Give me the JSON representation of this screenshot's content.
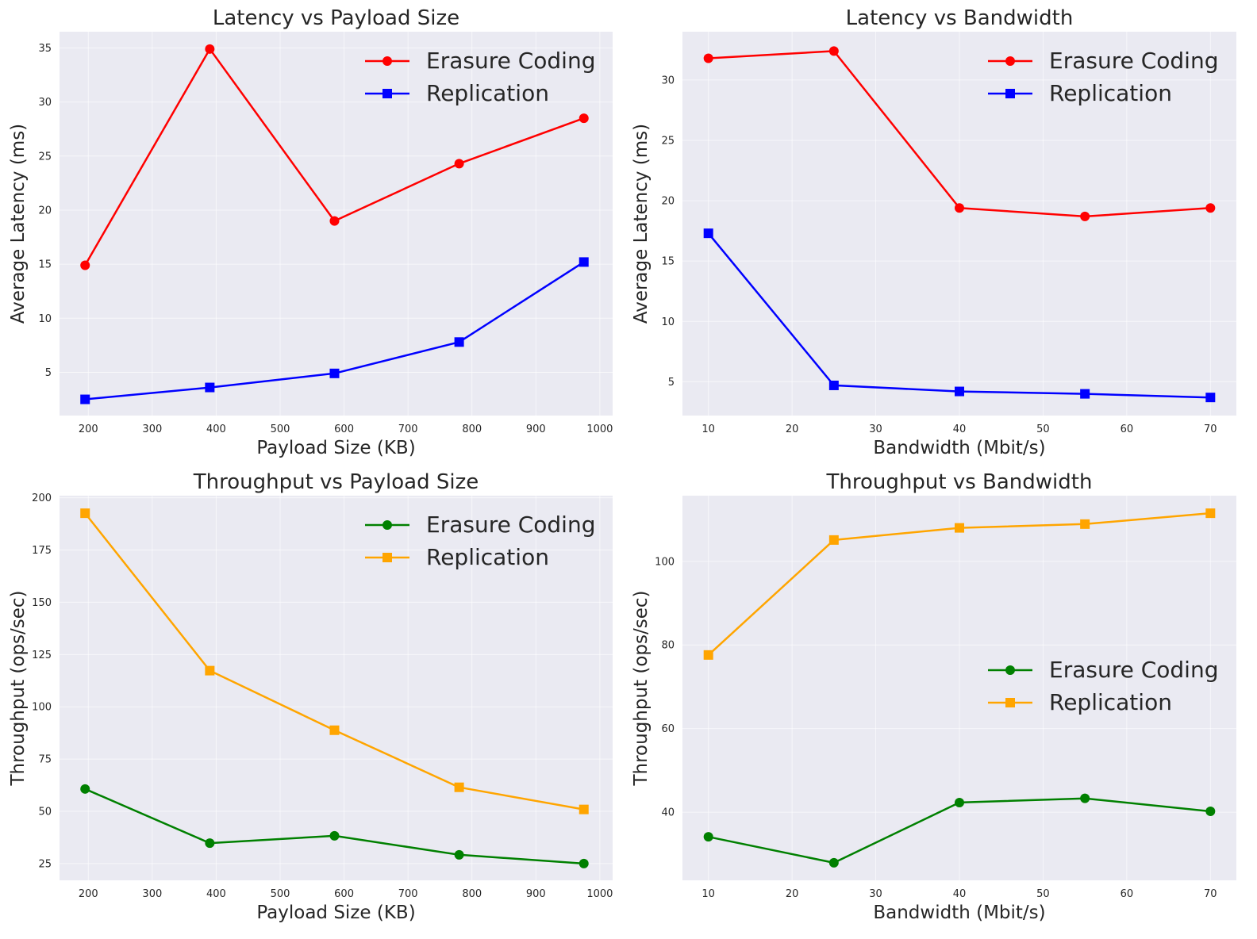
{
  "chart_data": [
    {
      "type": "line",
      "title": "Latency vs Payload Size",
      "xlabel": "Payload Size (KB)",
      "ylabel": "Average Latency (ms)",
      "xlim": [
        155,
        1020
      ],
      "ylim": [
        1.0,
        36.5
      ],
      "xticks": [
        200,
        300,
        400,
        500,
        600,
        700,
        800,
        900,
        1000
      ],
      "yticks": [
        5,
        10,
        15,
        20,
        25,
        30,
        35
      ],
      "grid": true,
      "legend_position": "top-right",
      "x": [
        195,
        390,
        585,
        780,
        975
      ],
      "series": [
        {
          "name": "Erasure Coding",
          "color": "#ff0000",
          "marker": "circle",
          "values": [
            14.9,
            34.9,
            19.0,
            24.3,
            28.5
          ]
        },
        {
          "name": "Replication",
          "color": "#0000ff",
          "marker": "square",
          "values": [
            2.5,
            3.6,
            4.9,
            7.8,
            15.2
          ]
        }
      ]
    },
    {
      "type": "line",
      "title": "Latency vs Bandwidth",
      "xlabel": "Bandwidth (Mbit/s)",
      "ylabel": "Average Latency (ms)",
      "xlim": [
        6.9,
        73.1
      ],
      "ylim": [
        2.2,
        34.0
      ],
      "xticks": [
        10,
        20,
        30,
        40,
        50,
        60,
        70
      ],
      "yticks": [
        5,
        10,
        15,
        20,
        25,
        30
      ],
      "grid": true,
      "legend_position": "top-right",
      "x": [
        10,
        25,
        40,
        55,
        70
      ],
      "series": [
        {
          "name": "Erasure Coding",
          "color": "#ff0000",
          "marker": "circle",
          "values": [
            31.8,
            32.4,
            19.4,
            18.7,
            19.4
          ]
        },
        {
          "name": "Replication",
          "color": "#0000ff",
          "marker": "square",
          "values": [
            17.3,
            4.7,
            4.2,
            4.0,
            3.7
          ]
        }
      ]
    },
    {
      "type": "line",
      "title": "Throughput vs Payload Size",
      "xlabel": "Payload Size (KB)",
      "ylabel": "Throughput (ops/sec)",
      "xlim": [
        155,
        1020
      ],
      "ylim": [
        17,
        201
      ],
      "xticks": [
        200,
        300,
        400,
        500,
        600,
        700,
        800,
        900,
        1000
      ],
      "yticks": [
        25,
        50,
        75,
        100,
        125,
        150,
        175,
        200
      ],
      "grid": true,
      "legend_position": "top-right",
      "x": [
        195,
        390,
        585,
        780,
        975
      ],
      "series": [
        {
          "name": "Erasure Coding",
          "color": "#008000",
          "marker": "circle",
          "values": [
            60.7,
            34.8,
            38.3,
            29.2,
            25.0
          ]
        },
        {
          "name": "Replication",
          "color": "#ffa500",
          "marker": "square",
          "values": [
            192.6,
            117.3,
            88.8,
            61.5,
            50.9
          ]
        }
      ]
    },
    {
      "type": "line",
      "title": "Throughput vs Bandwidth",
      "xlabel": "Bandwidth (Mbit/s)",
      "ylabel": "Throughput (ops/sec)",
      "xlim": [
        6.9,
        73.1
      ],
      "ylim": [
        23.7,
        115.7
      ],
      "xticks": [
        10,
        20,
        30,
        40,
        50,
        60,
        70
      ],
      "yticks": [
        40,
        60,
        80,
        100
      ],
      "grid": true,
      "legend_position": "center-right",
      "x": [
        10,
        25,
        40,
        55,
        70
      ],
      "series": [
        {
          "name": "Erasure Coding",
          "color": "#008000",
          "marker": "circle",
          "values": [
            34.1,
            27.9,
            42.3,
            43.3,
            40.2
          ]
        },
        {
          "name": "Replication",
          "color": "#ffa500",
          "marker": "square",
          "values": [
            77.6,
            105.1,
            108.0,
            108.9,
            111.5
          ]
        }
      ]
    }
  ],
  "style": {
    "axes_background": "#eaeaf2",
    "grid_color": "#ffffff",
    "text_color": "#262626",
    "tick_color": "#262626"
  }
}
